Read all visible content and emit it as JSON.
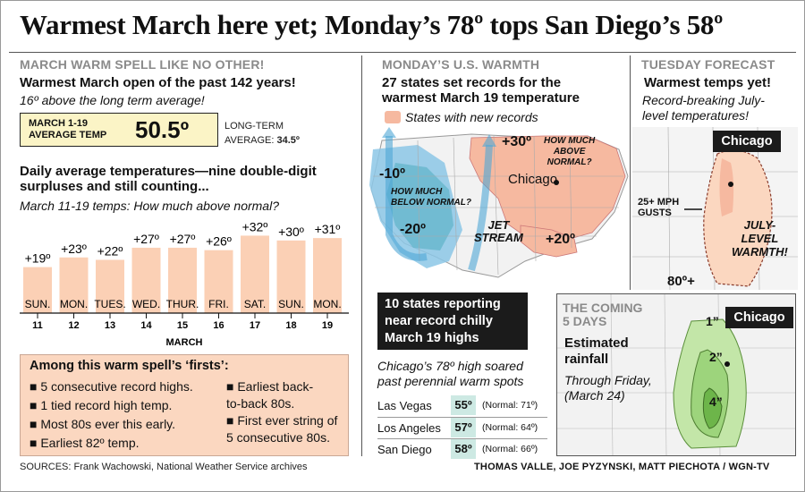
{
  "headline": "Warmest March here yet; Monday’s 78º tops San Diego’s 58º",
  "left": {
    "section_title": "MARCH WARM SPELL LIKE NO OTHER!",
    "heading": "Warmest March open of the past 142 years!",
    "subheading": "16º above the long term average!",
    "avg_box": {
      "label_line1": "MARCH 1-19",
      "label_line2": "AVERAGE TEMP",
      "value": "50.5º"
    },
    "long_term": {
      "line1": "LONG-TERM",
      "line2_prefix": "AVERAGE: ",
      "value": "34.5º"
    },
    "chart_heading_line1": "Daily average temperatures—nine double-digit",
    "chart_heading_line2": "surpluses and still counting...",
    "chart_subtitle": "March 11-19 temps: How much above normal?",
    "firsts_title": "Among this warm spell’s ‘firsts’:",
    "firsts": [
      "■ 5 consecutive record highs.",
      "■ 1 tied record high temp.",
      "■ Most 80s ever this early.",
      "■ Earliest 82º temp.",
      "■ Earliest back-",
      "to-back 80s.",
      "■ First ever string of",
      "5 consecutive 80s."
    ],
    "sources": "SOURCES: Frank Wachowski, National Weather Service archives"
  },
  "chart_data": {
    "type": "bar",
    "days": [
      "SUN.",
      "MON.",
      "TUES.",
      "WED.",
      "THUR.",
      "FRI.",
      "SAT.",
      "SUN.",
      "MON."
    ],
    "dates": [
      "11",
      "12",
      "13",
      "14",
      "15",
      "16",
      "17",
      "18",
      "19"
    ],
    "values": [
      19,
      23,
      22,
      27,
      27,
      26,
      32,
      30,
      31
    ],
    "value_labels": [
      "+19º",
      "+23º",
      "+22º",
      "+27º",
      "+27º",
      "+26º",
      "+32º",
      "+30º",
      "+31º"
    ],
    "xlabel": "MARCH",
    "ylim": [
      0,
      34
    ],
    "bar_color": "#fbd0b5",
    "grid": false
  },
  "middle": {
    "section_title": "MONDAY’S U.S. WARMTH",
    "heading_line1": "27 states set records for the",
    "heading_line2": "warmest March 19 temperature",
    "legend_label": "States with new records",
    "map_labels": {
      "minus10": "-10º",
      "minus20": "-20º",
      "below_line1": "HOW MUCH",
      "below_line2": "BELOW NORMAL?",
      "plus30": "+30º",
      "above_line1": "HOW MUCH",
      "above_line2": "ABOVE",
      "above_line3": "NORMAL?",
      "chicago": "Chicago",
      "jet1": "JET",
      "jet2": "STREAM",
      "plus20": "+20º"
    },
    "chilly_box": [
      "10 states reporting",
      "near record chilly",
      "March 19 highs"
    ],
    "cities_heading_line1": "Chicago’s 78º high soared",
    "cities_heading_line2": "past perennial warm spots",
    "cities": [
      {
        "name": "Las Vegas",
        "temp": "55º",
        "normal": "(Normal: 71º)"
      },
      {
        "name": "Los Angeles",
        "temp": "57º",
        "normal": "(Normal: 64º)"
      },
      {
        "name": "San Diego",
        "temp": "58º",
        "normal": "(Normal: 66º)"
      }
    ]
  },
  "right": {
    "section_title": "TUESDAY FORECAST",
    "heading": "Warmest temps yet!",
    "sub_line1": "Record-breaking July-",
    "sub_line2": "level temperatures!",
    "chicago": "Chicago",
    "gusts_line1": "25+ MPH",
    "gusts_line2": "GUSTS",
    "july_line1": "JULY-",
    "july_line2": "LEVEL",
    "july_line3": "WARMTH!",
    "eighty": "80º+",
    "coming_line1": "THE COMING",
    "coming_line2": "5 DAYS",
    "rain_line1": "Estimated",
    "rain_line2": "rainfall",
    "through_line1": "Through Friday,",
    "through_line2": "(March 24)",
    "rain_chicago": "Chicago",
    "one_inch": "1”",
    "two_inch": "2”",
    "four_inch": "4”"
  },
  "credit": "THOMAS VALLE, JOE PYZYNSKI, MATT PIECHOTA / WGN-TV",
  "colors": {
    "record_states": "#f6b9a0",
    "cold_blue": "#8cc7e6",
    "rain_green": "#9dd47c",
    "box_yellow": "#fbf4c6",
    "callout_peach": "#fbd7c0"
  }
}
